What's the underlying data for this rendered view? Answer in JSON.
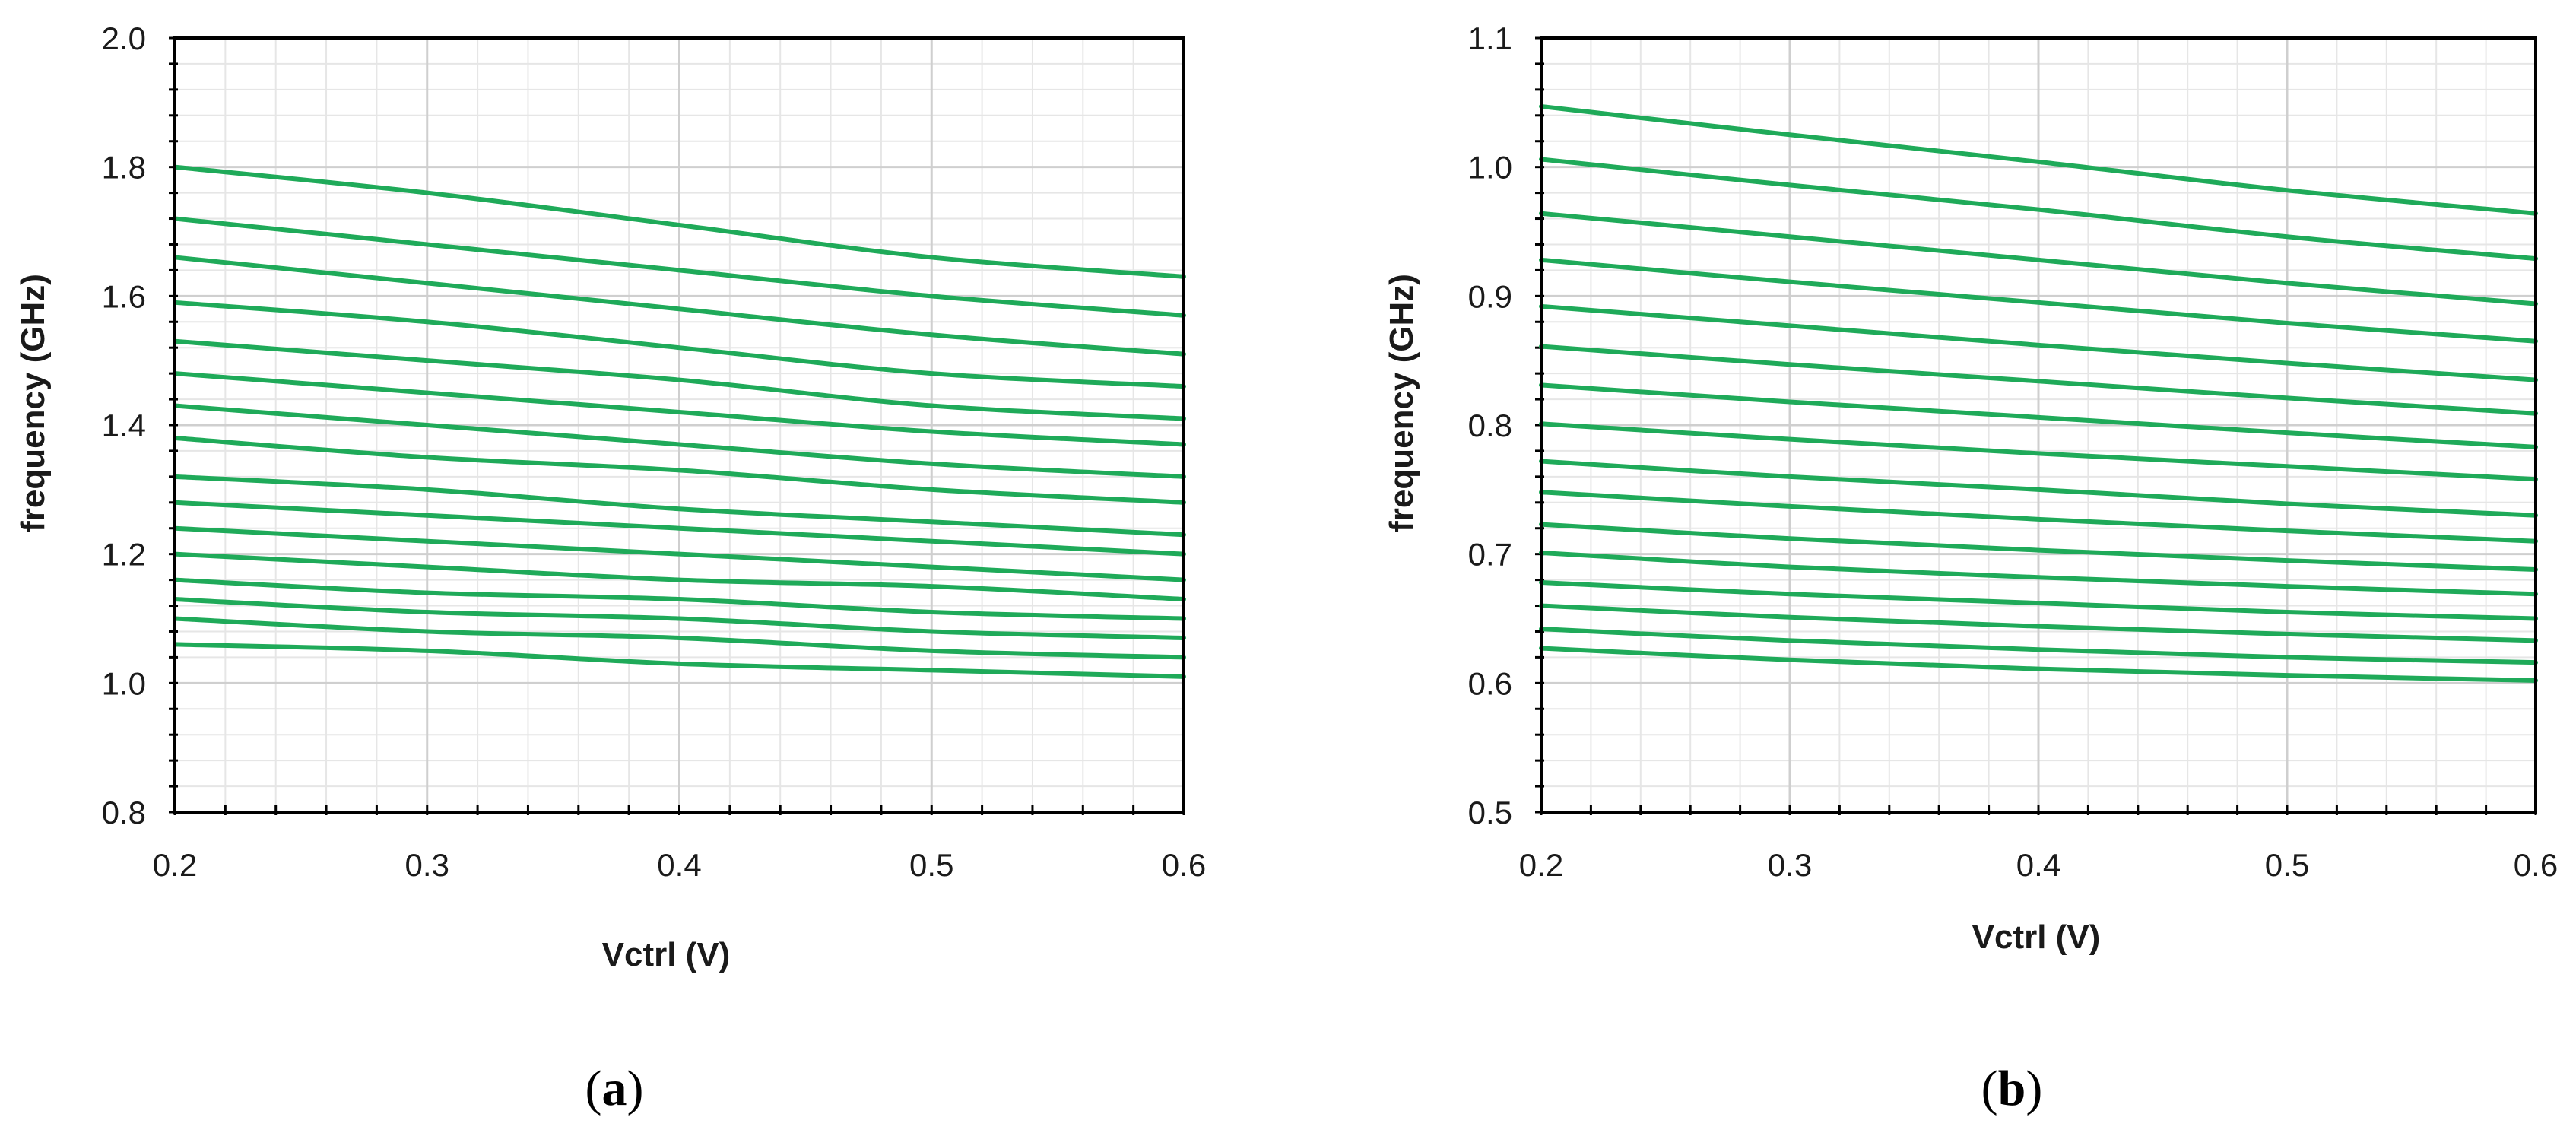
{
  "chart_data": [
    {
      "type": "line",
      "panel_label": "a",
      "xlabel": "Vctrl (V)",
      "ylabel": "frequency (GHz)",
      "xlim": [
        0.2,
        0.6
      ],
      "ylim": [
        0.8,
        2.0
      ],
      "x_ticks": [
        "0.2",
        "0.3",
        "0.4",
        "0.5",
        "0.6"
      ],
      "y_ticks": [
        "0.8",
        "1.0",
        "1.2",
        "1.4",
        "1.6",
        "1.8",
        "2.0"
      ],
      "grid": true,
      "legend": "none",
      "line_color": "#1faa59",
      "x": [
        0.2,
        0.3,
        0.4,
        0.5,
        0.6
      ],
      "series": [
        {
          "values": [
            1.8,
            1.76,
            1.71,
            1.66,
            1.63
          ]
        },
        {
          "values": [
            1.72,
            1.68,
            1.64,
            1.6,
            1.57
          ]
        },
        {
          "values": [
            1.66,
            1.62,
            1.58,
            1.54,
            1.51
          ]
        },
        {
          "values": [
            1.59,
            1.56,
            1.52,
            1.48,
            1.46
          ]
        },
        {
          "values": [
            1.53,
            1.5,
            1.47,
            1.43,
            1.41
          ]
        },
        {
          "values": [
            1.48,
            1.45,
            1.42,
            1.39,
            1.37
          ]
        },
        {
          "values": [
            1.43,
            1.4,
            1.37,
            1.34,
            1.32
          ]
        },
        {
          "values": [
            1.38,
            1.35,
            1.33,
            1.3,
            1.28
          ]
        },
        {
          "values": [
            1.32,
            1.3,
            1.27,
            1.25,
            1.23
          ]
        },
        {
          "values": [
            1.28,
            1.26,
            1.24,
            1.22,
            1.2
          ]
        },
        {
          "values": [
            1.24,
            1.22,
            1.2,
            1.18,
            1.16
          ]
        },
        {
          "values": [
            1.2,
            1.18,
            1.16,
            1.15,
            1.13
          ]
        },
        {
          "values": [
            1.16,
            1.14,
            1.13,
            1.11,
            1.1
          ]
        },
        {
          "values": [
            1.13,
            1.11,
            1.1,
            1.08,
            1.07
          ]
        },
        {
          "values": [
            1.1,
            1.08,
            1.07,
            1.05,
            1.04
          ]
        },
        {
          "values": [
            1.06,
            1.05,
            1.03,
            1.02,
            1.01
          ]
        }
      ]
    },
    {
      "type": "line",
      "panel_label": "b",
      "xlabel": "Vctrl (V)",
      "ylabel": "frequency (GHz)",
      "xlim": [
        0.2,
        0.6
      ],
      "ylim": [
        0.5,
        1.1
      ],
      "x_ticks": [
        "0.2",
        "0.3",
        "0.4",
        "0.5",
        "0.6"
      ],
      "y_ticks": [
        "0.5",
        "0.6",
        "0.7",
        "0.8",
        "0.9",
        "1.0",
        "1.1"
      ],
      "grid": true,
      "legend": "none",
      "line_color": "#1faa59",
      "x": [
        0.2,
        0.3,
        0.4,
        0.5,
        0.6
      ],
      "series": [
        {
          "values": [
            1.047,
            1.025,
            1.004,
            0.982,
            0.964
          ]
        },
        {
          "values": [
            1.006,
            0.986,
            0.967,
            0.946,
            0.929
          ]
        },
        {
          "values": [
            0.964,
            0.946,
            0.928,
            0.91,
            0.894
          ]
        },
        {
          "values": [
            0.928,
            0.911,
            0.895,
            0.879,
            0.865
          ]
        },
        {
          "values": [
            0.892,
            0.877,
            0.862,
            0.848,
            0.835
          ]
        },
        {
          "values": [
            0.861,
            0.847,
            0.834,
            0.821,
            0.809
          ]
        },
        {
          "values": [
            0.831,
            0.818,
            0.806,
            0.794,
            0.783
          ]
        },
        {
          "values": [
            0.801,
            0.789,
            0.778,
            0.768,
            0.758
          ]
        },
        {
          "values": [
            0.772,
            0.76,
            0.75,
            0.739,
            0.73
          ]
        },
        {
          "values": [
            0.748,
            0.737,
            0.727,
            0.718,
            0.71
          ]
        },
        {
          "values": [
            0.723,
            0.712,
            0.703,
            0.695,
            0.688
          ]
        },
        {
          "values": [
            0.701,
            0.69,
            0.682,
            0.675,
            0.669
          ]
        },
        {
          "values": [
            0.678,
            0.669,
            0.662,
            0.655,
            0.65
          ]
        },
        {
          "values": [
            0.66,
            0.651,
            0.644,
            0.638,
            0.633
          ]
        },
        {
          "values": [
            0.642,
            0.633,
            0.626,
            0.62,
            0.616
          ]
        },
        {
          "values": [
            0.627,
            0.618,
            0.611,
            0.606,
            0.602
          ]
        }
      ]
    }
  ]
}
